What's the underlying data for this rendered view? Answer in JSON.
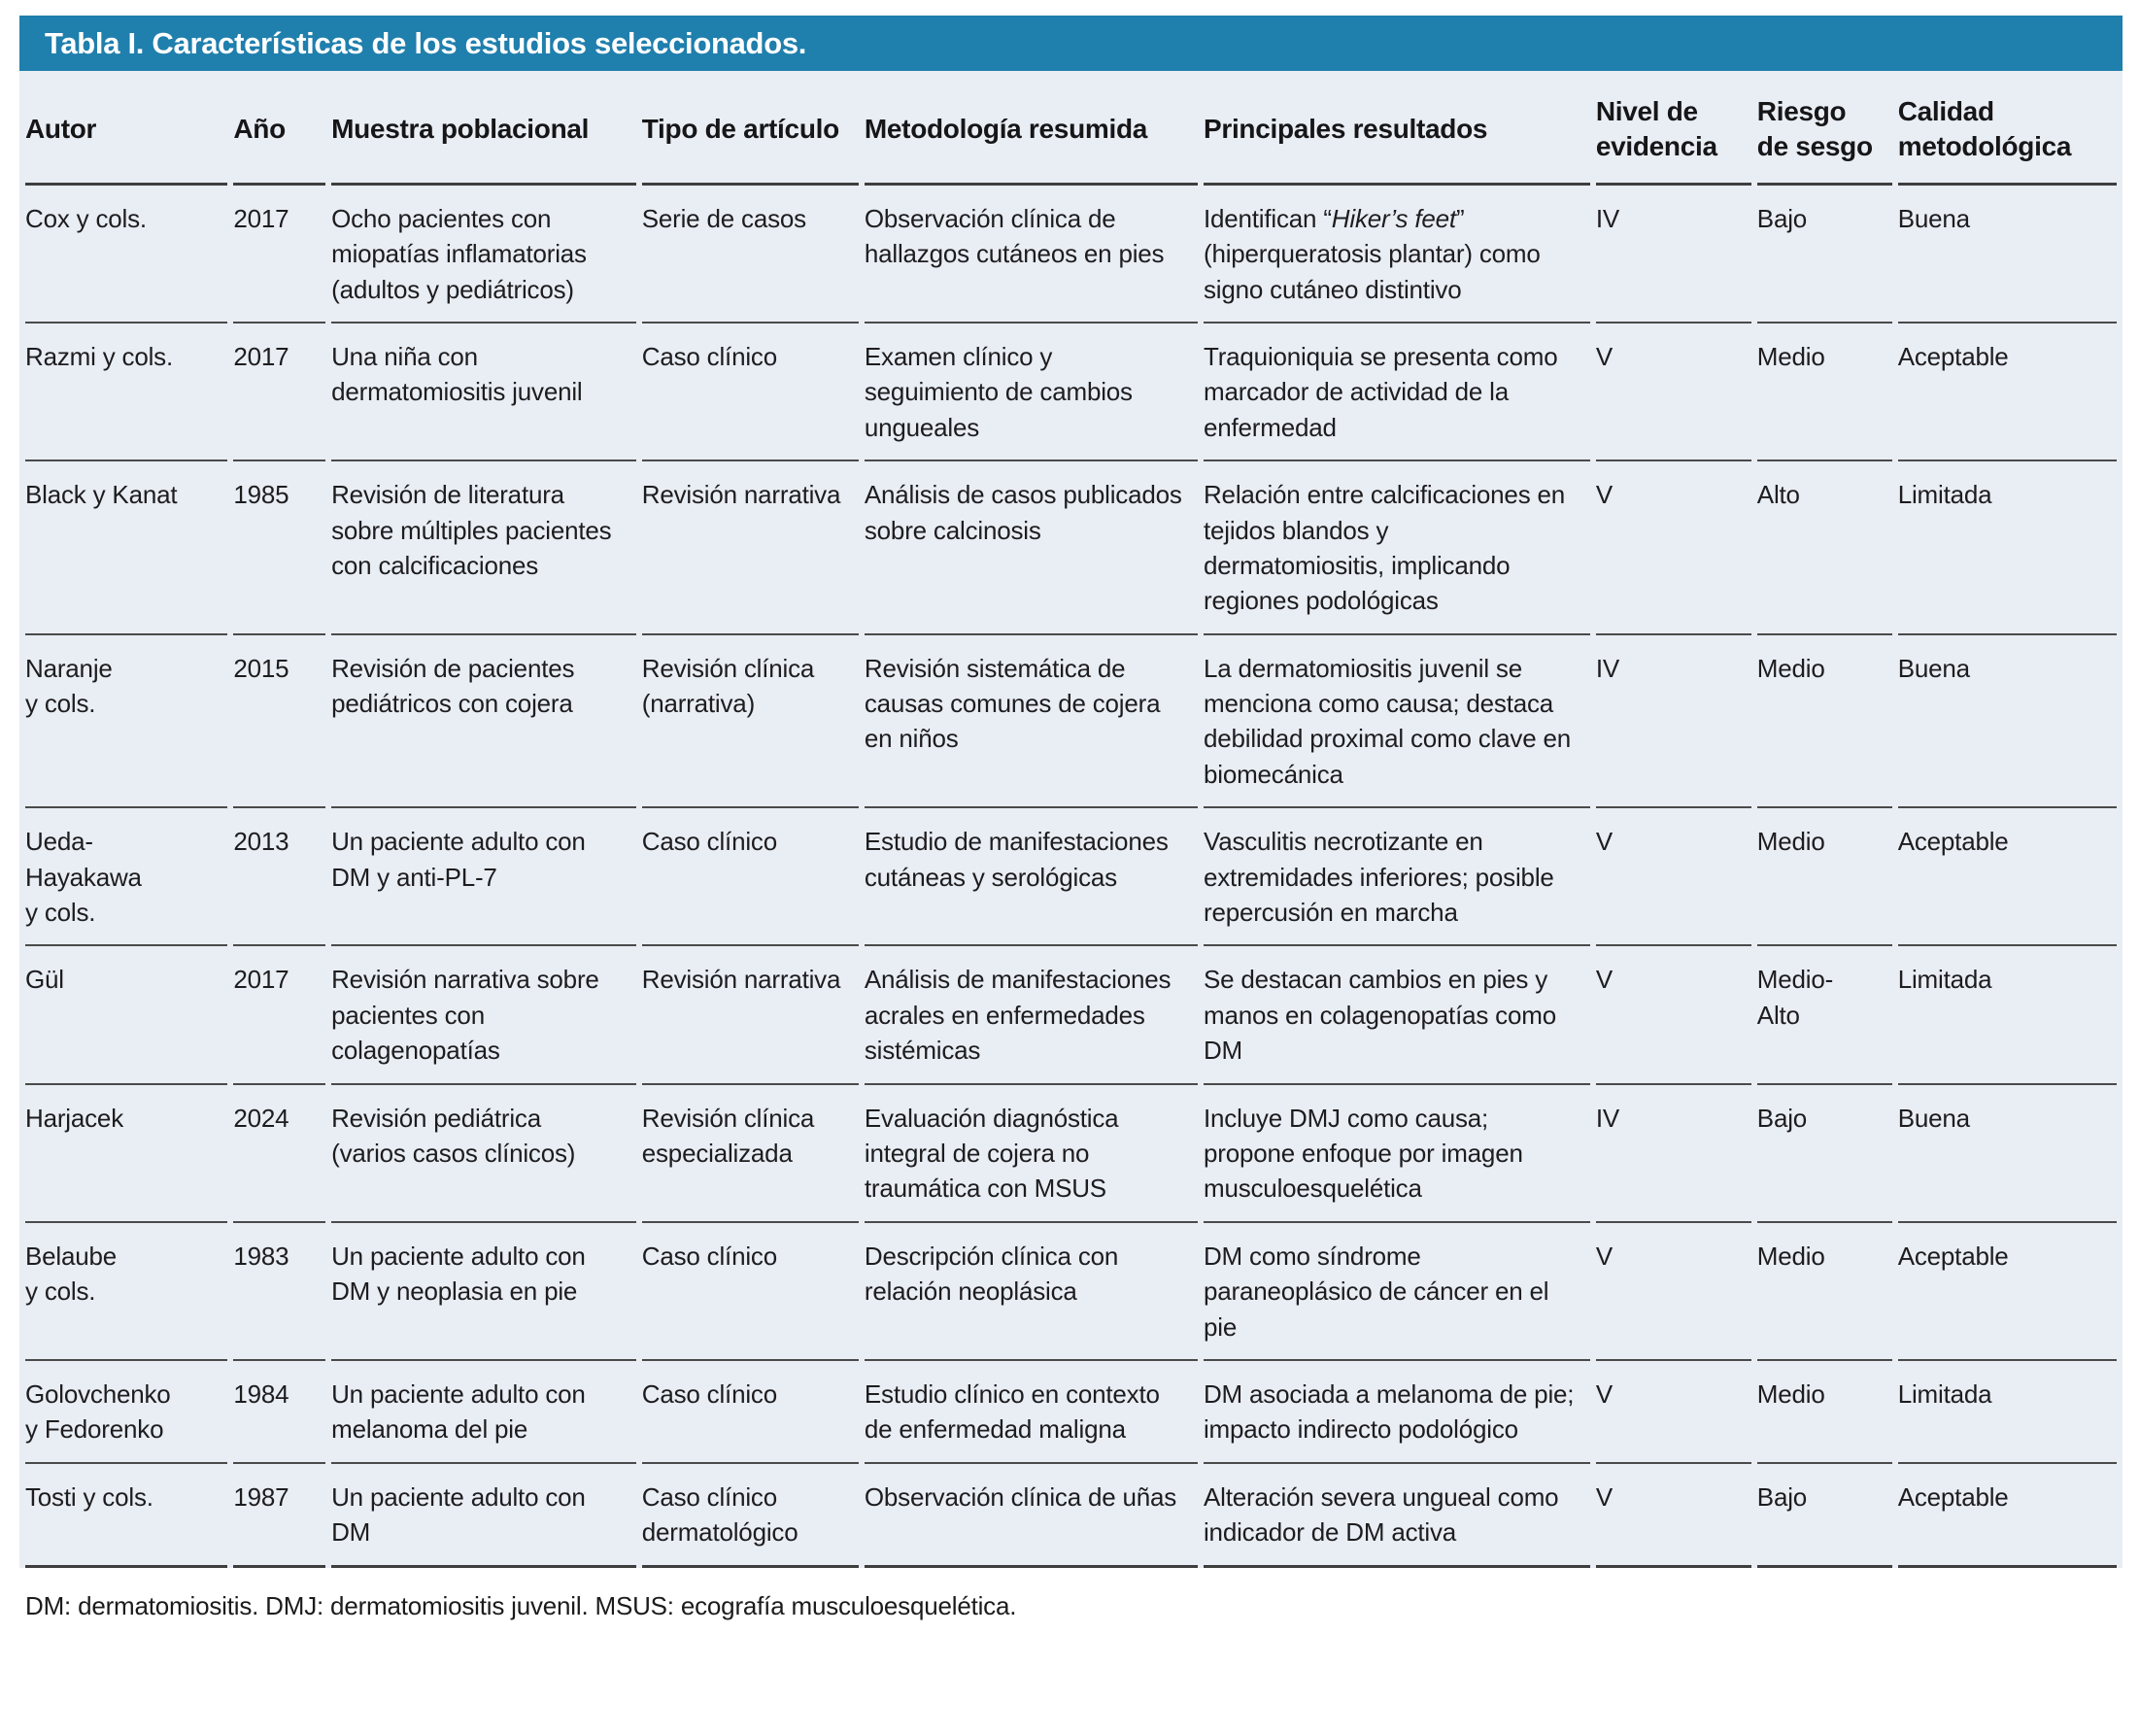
{
  "colors": {
    "title_bar": "#1f7fad",
    "title_text": "#ffffff",
    "table_background": "#e9edf4",
    "separator_line": "#4a4a4a",
    "body_text": "#1d1d1f"
  },
  "table": {
    "title": "Tabla I. Características de los estudios seleccionados.",
    "columns": [
      {
        "key": "autor",
        "label": "Autor"
      },
      {
        "key": "ano",
        "label": "Año"
      },
      {
        "key": "muestra",
        "label": "Muestra poblacional"
      },
      {
        "key": "tipo",
        "label": "Tipo de artículo"
      },
      {
        "key": "metodologia",
        "label": "Metodología resumida"
      },
      {
        "key": "resultados",
        "label": "Principales resultados"
      },
      {
        "key": "nivel",
        "label": "Nivel de evidencia"
      },
      {
        "key": "riesgo",
        "label": "Riesgo de sesgo"
      },
      {
        "key": "calidad",
        "label": "Calidad metodológica"
      }
    ],
    "rows": [
      [
        "Cox y cols.",
        "2017",
        "Ocho pacientes con miopatías inflamatorias (adultos y pediátricos)",
        "Serie de casos",
        "Observación clínica de hallazgos cutáneos en pies",
        [
          {
            "text": "Identifican “"
          },
          {
            "text": "Hiker’s feet",
            "italic": true
          },
          {
            "text": "” (hiperqueratosis plantar) como signo cutáneo distintivo"
          }
        ],
        "IV",
        "Bajo",
        "Buena"
      ],
      [
        "Razmi y cols.",
        "2017",
        "Una niña con dermatomiositis juvenil",
        "Caso clínico",
        "Examen clínico y seguimiento de cambios ungueales",
        "Traquioniquia se presenta como marcador de actividad de la enfermedad",
        "V",
        "Medio",
        "Aceptable"
      ],
      [
        "Black y Kanat",
        "1985",
        "Revisión de literatura sobre múltiples pacientes con calcificaciones",
        "Revisión narrativa",
        "Análisis de casos publicados sobre calcinosis",
        "Relación entre calcificaciones en tejidos blandos y dermatomiositis, implicando regiones podológicas",
        "V",
        "Alto",
        "Limitada"
      ],
      [
        "Naranje\ny cols.",
        "2015",
        "Revisión de pacientes pediátricos con cojera",
        "Revisión clínica (narrativa)",
        "Revisión sistemática de causas comunes de cojera en niños",
        "La dermatomiositis juvenil se menciona como causa; destaca debilidad proximal como clave en biomecánica",
        "IV",
        "Medio",
        "Buena"
      ],
      [
        "Ueda-\nHayakawa\ny cols.",
        "2013",
        "Un paciente adulto con DM y anti-PL-7",
        "Caso clínico",
        "Estudio de manifestaciones cutáneas y serológicas",
        "Vasculitis necrotizante en extremidades inferiores; posible repercusión en marcha",
        "V",
        "Medio",
        "Aceptable"
      ],
      [
        "Gül",
        "2017",
        "Revisión narrativa sobre pacientes con colagenopatías",
        "Revisión narrativa",
        "Análisis de manifestaciones acrales en enfermedades sistémicas",
        "Se destacan cambios en pies y manos en colagenopatías como DM",
        "V",
        "Medio-\nAlto",
        "Limitada"
      ],
      [
        "Harjacek",
        "2024",
        "Revisión pediátrica (varios casos clínicos)",
        "Revisión clínica especializada",
        "Evaluación diagnóstica integral de cojera no traumática con MSUS",
        "Incluye DMJ como causa; propone enfoque por imagen musculoesquelética",
        "IV",
        "Bajo",
        "Buena"
      ],
      [
        "Belaube\ny cols.",
        "1983",
        "Un paciente adulto con DM y neoplasia en pie",
        "Caso clínico",
        "Descripción clínica con relación neoplásica",
        "DM como síndrome paraneoplásico de cáncer en el pie",
        "V",
        "Medio",
        "Aceptable"
      ],
      [
        "Golovchenko\ny Fedorenko",
        "1984",
        "Un paciente adulto con melanoma del pie",
        "Caso clínico",
        "Estudio clínico en contexto de enfermedad maligna",
        "DM asociada a melanoma de pie; impacto indirecto podológico",
        "V",
        "Medio",
        "Limitada"
      ],
      [
        "Tosti y cols.",
        "1987",
        "Un paciente adulto con DM",
        "Caso clínico dermatológico",
        "Observación clínica de uñas",
        "Alteración severa ungueal como indicador de DM activa",
        "V",
        "Bajo",
        "Aceptable"
      ]
    ],
    "footnote": "DM: dermatomiositis. DMJ: dermatomiositis juvenil. MSUS: ecografía musculoesquelética."
  }
}
